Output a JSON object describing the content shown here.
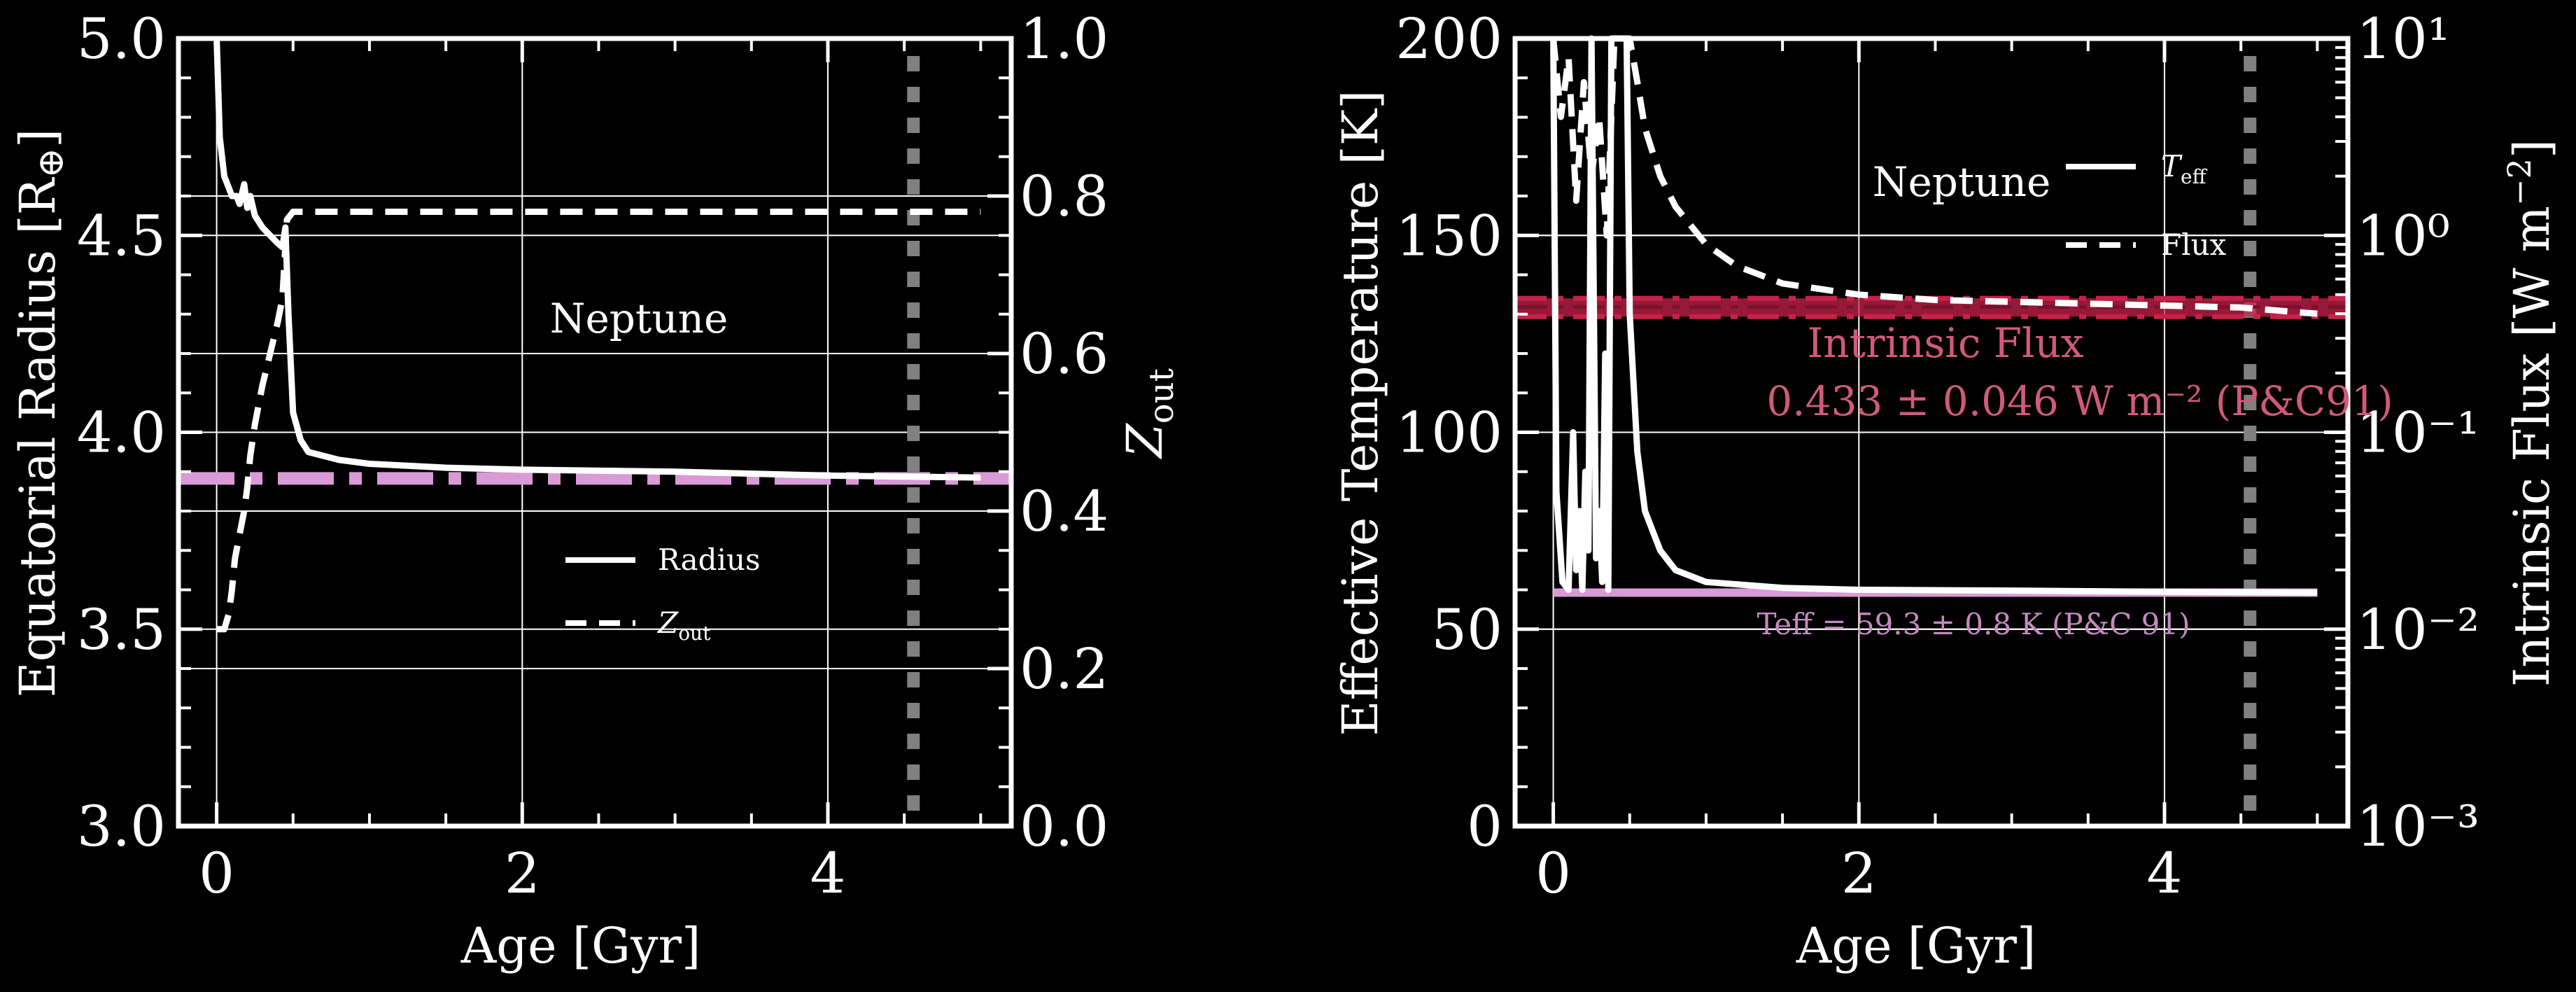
{
  "colors": {
    "background": "#000000",
    "white": "#ffffff",
    "grey": "#808080",
    "pink": "#d99ad6",
    "crimson": "#c8214a",
    "flux_text": "#d05a7a"
  },
  "chart_data": [
    {
      "type": "line",
      "xlabel": "Age [Gyr]",
      "ylabel": "Equatorial Radius [R⊕]",
      "y2label": "Zout",
      "xlim": [
        -0.25,
        5.2
      ],
      "ylim": [
        3.0,
        5.0
      ],
      "y2lim": [
        0.0,
        1.0
      ],
      "xticks": [
        "0",
        "2",
        "4"
      ],
      "yticks": [
        "3.0",
        "3.5",
        "4.0",
        "4.5",
        "5.0"
      ],
      "y2ticks": [
        "0.0",
        "0.2",
        "0.4",
        "0.6",
        "0.8",
        "1.0"
      ],
      "annotation": "Neptune",
      "legend": {
        "placement": "lower-center",
        "items": [
          "Radius",
          "Zout"
        ]
      },
      "grid": true,
      "reference_age": 4.56,
      "reference_radius": 3.883,
      "series": [
        {
          "name": "Radius",
          "axis": "left",
          "style": "solid",
          "x": [
            0,
            0.02,
            0.05,
            0.08,
            0.1,
            0.13,
            0.15,
            0.18,
            0.2,
            0.22,
            0.25,
            0.3,
            0.35,
            0.4,
            0.43,
            0.45,
            0.47,
            0.5,
            0.55,
            0.6,
            0.8,
            1.0,
            1.5,
            2.0,
            3.0,
            4.0,
            5.0
          ],
          "y": [
            5.0,
            4.75,
            4.65,
            4.62,
            4.6,
            4.6,
            4.58,
            4.63,
            4.57,
            4.6,
            4.55,
            4.52,
            4.5,
            4.48,
            4.47,
            4.52,
            4.3,
            4.05,
            3.98,
            3.95,
            3.93,
            3.92,
            3.91,
            3.905,
            3.9,
            3.89,
            3.885
          ]
        },
        {
          "name": "Zout",
          "axis": "right",
          "style": "dashed",
          "x": [
            0,
            0.05,
            0.08,
            0.1,
            0.12,
            0.15,
            0.18,
            0.2,
            0.22,
            0.25,
            0.3,
            0.35,
            0.4,
            0.43,
            0.46,
            0.5,
            1.0,
            2.0,
            3.0,
            4.0,
            5.0
          ],
          "y": [
            0.25,
            0.25,
            0.27,
            0.3,
            0.34,
            0.37,
            0.4,
            0.43,
            0.47,
            0.51,
            0.56,
            0.6,
            0.64,
            0.67,
            0.77,
            0.78,
            0.78,
            0.78,
            0.78,
            0.78,
            0.78
          ]
        }
      ]
    },
    {
      "type": "line",
      "xlabel": "Age [Gyr]",
      "ylabel": "Effective Temperature [K]",
      "y2label": "Intrinsic Flux [W m⁻²]",
      "xlim": [
        -0.25,
        5.2
      ],
      "ylim": [
        0,
        200
      ],
      "y2lim": [
        0.001,
        10
      ],
      "y2scale": "log",
      "xticks": [
        "0",
        "2",
        "4"
      ],
      "yticks": [
        "0",
        "50",
        "100",
        "150",
        "200"
      ],
      "y2ticks": [
        "10⁻³",
        "10⁻²",
        "10⁻¹",
        "10⁰",
        "10¹"
      ],
      "annotation": "Neptune",
      "flux_label_line1": "Intrinsic Flux",
      "flux_label_line2": "0.433 ± 0.046 W m⁻² (P&C91)",
      "teff_label": "Teff = 59.3 ± 0.8 K (P&C 91)",
      "legend": {
        "placement": "upper-right",
        "items": [
          "Teff",
          "Flux"
        ]
      },
      "grid": true,
      "reference_age": 4.56,
      "reference_teff": 59.3,
      "reference_flux": {
        "value": 0.433,
        "low": 0.387,
        "high": 0.479
      },
      "series": [
        {
          "name": "Teff",
          "axis": "left",
          "style": "solid",
          "x": [
            0,
            0.02,
            0.06,
            0.1,
            0.13,
            0.15,
            0.17,
            0.19,
            0.21,
            0.23,
            0.25,
            0.28,
            0.3,
            0.32,
            0.34,
            0.36,
            0.38,
            0.4,
            0.43,
            0.46,
            0.48,
            0.5,
            0.55,
            0.6,
            0.7,
            0.8,
            1.0,
            1.5,
            2.0,
            3.0,
            4.0,
            5.0
          ],
          "y": [
            200,
            85,
            62,
            60,
            100,
            65,
            80,
            60,
            90,
            70,
            200,
            68,
            80,
            62,
            120,
            60,
            200,
            200,
            200,
            200,
            200,
            130,
            95,
            80,
            70,
            65,
            62,
            60.5,
            60,
            59.8,
            59.5,
            59.3
          ]
        },
        {
          "name": "Flux",
          "axis": "right",
          "style": "dashed",
          "x": [
            0,
            0.05,
            0.1,
            0.15,
            0.2,
            0.25,
            0.3,
            0.35,
            0.4,
            0.45,
            0.5,
            0.55,
            0.6,
            0.7,
            0.8,
            1.0,
            1.2,
            1.5,
            2.0,
            2.5,
            3.0,
            3.5,
            4.0,
            4.5,
            5.0
          ],
          "y": [
            10,
            4,
            8,
            1.5,
            6,
            2,
            4,
            1,
            10,
            10,
            10,
            6,
            3.5,
            2,
            1.4,
            0.9,
            0.7,
            0.57,
            0.5,
            0.47,
            0.46,
            0.45,
            0.44,
            0.43,
            0.4
          ]
        }
      ]
    }
  ]
}
